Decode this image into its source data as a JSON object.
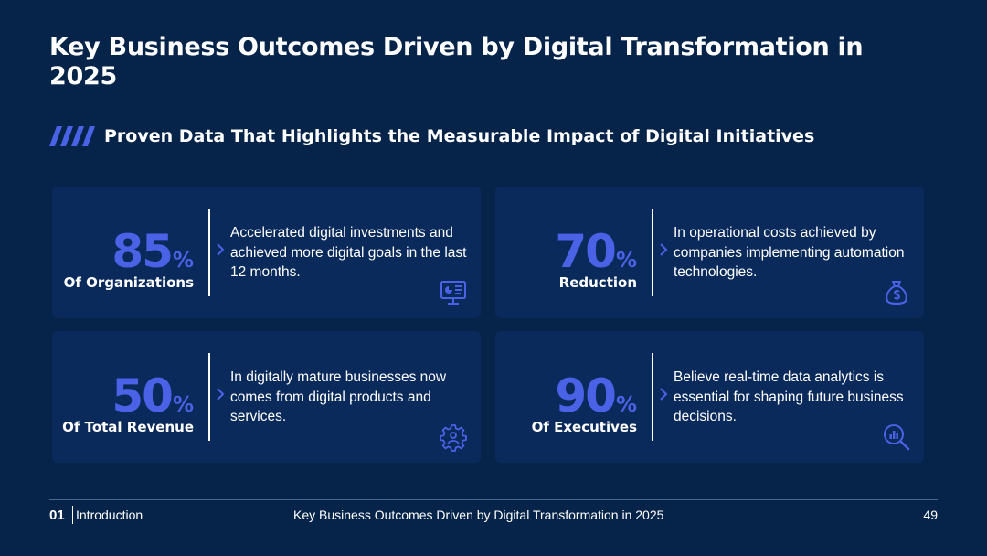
{
  "title": "Key Business Outcomes Driven by Digital Transformation in 2025",
  "subtitle": "Proven Data That Highlights the Measurable Impact of Digital Initiatives",
  "colors": {
    "background": "#062449",
    "card": "#0b2a5c",
    "accent": "#4a62e6",
    "text": "#ffffff"
  },
  "cards": [
    {
      "value": "85",
      "unit": "%",
      "label": "Of Organizations",
      "text": "Accelerated digital investments and achieved more digital goals in the last 12 months.",
      "icon": "presentation-chart-icon"
    },
    {
      "value": "70",
      "unit": "%",
      "label": "Reduction",
      "text": "In operational costs achieved by companies implementing automation technologies.",
      "icon": "money-bag-icon"
    },
    {
      "value": "50",
      "unit": "%",
      "label": "Of Total Revenue",
      "text": "In digitally mature businesses now comes from digital products and services.",
      "icon": "gear-person-icon"
    },
    {
      "value": "90",
      "unit": "%",
      "label": "Of Executives",
      "text": "Believe real-time data analytics is essential for shaping future business decisions.",
      "icon": "magnifier-chart-icon"
    }
  ],
  "footer": {
    "number": "01",
    "section": "Introduction",
    "title": "Key Business Outcomes Driven by Digital Transformation  in 2025",
    "page": "49"
  }
}
